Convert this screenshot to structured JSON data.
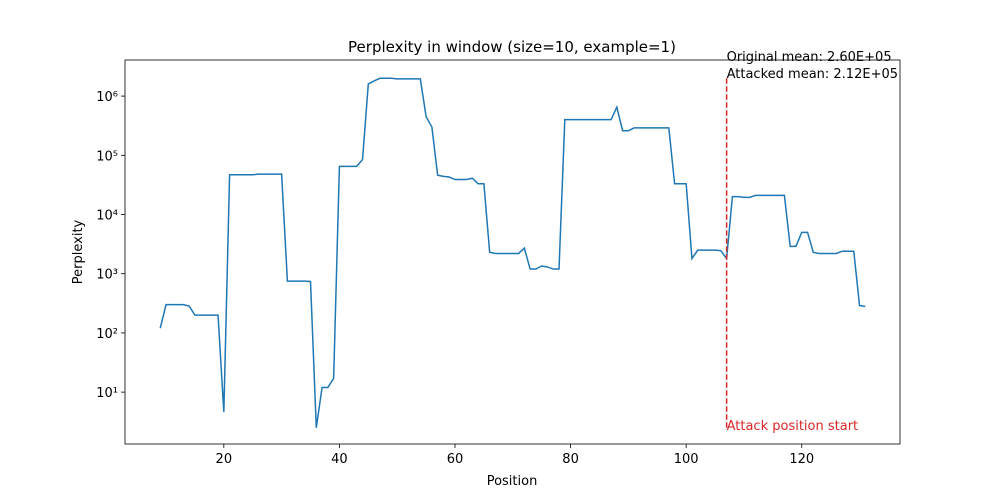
{
  "chart_data": {
    "type": "line",
    "title": "Perplexity in window (size=10, example=1)",
    "xlabel": "Position",
    "ylabel": "Perplexity",
    "x": [
      9,
      10,
      11,
      12,
      13,
      14,
      15,
      16,
      17,
      18,
      19,
      20,
      21,
      22,
      23,
      24,
      25,
      26,
      27,
      28,
      29,
      30,
      31,
      32,
      33,
      34,
      35,
      36,
      37,
      38,
      39,
      40,
      41,
      42,
      43,
      44,
      45,
      46,
      47,
      48,
      49,
      50,
      51,
      52,
      53,
      54,
      55,
      56,
      57,
      58,
      59,
      60,
      61,
      62,
      63,
      64,
      65,
      66,
      67,
      68,
      69,
      70,
      71,
      72,
      73,
      74,
      75,
      76,
      77,
      78,
      79,
      80,
      81,
      82,
      83,
      84,
      85,
      86,
      87,
      88,
      89,
      90,
      91,
      92,
      93,
      94,
      95,
      96,
      97,
      98,
      99,
      100,
      101,
      102,
      103,
      104,
      105,
      106,
      107,
      108,
      109,
      110,
      111,
      112,
      113,
      114,
      115,
      116,
      117,
      118,
      119,
      120,
      121,
      122,
      123,
      124,
      125,
      126,
      127,
      128,
      129,
      130,
      131
    ],
    "series": [
      {
        "name": "Perplexity",
        "color": "#1f77b4",
        "values": [
          120,
          300,
          300,
          300,
          300,
          285,
          200,
          200,
          200,
          200,
          200,
          4.6,
          47000,
          47000,
          47000,
          47000,
          47000,
          48000,
          48000,
          48000,
          48000,
          48000,
          750,
          750,
          750,
          750,
          740,
          2.5,
          12,
          12,
          17,
          65000,
          65000,
          65000,
          65000,
          85000,
          1600000,
          1800000,
          2000000,
          2000000,
          2000000,
          1950000,
          1950000,
          1950000,
          1950000,
          1950000,
          450000,
          300000,
          46000,
          44000,
          43000,
          39000,
          39000,
          39000,
          41000,
          33000,
          33000,
          2300,
          2200,
          2200,
          2200,
          2200,
          2200,
          2700,
          1200,
          1200,
          1350,
          1300,
          1200,
          1200,
          400000,
          400000,
          400000,
          400000,
          400000,
          400000,
          400000,
          400000,
          400000,
          650000,
          260000,
          260000,
          290000,
          290000,
          290000,
          290000,
          290000,
          290000,
          290000,
          33000,
          33000,
          33000,
          1800,
          2500,
          2500,
          2500,
          2500,
          2450,
          1800,
          20000,
          20000,
          19500,
          19500,
          21000,
          21000,
          21000,
          21000,
          21000,
          21000,
          2900,
          2900,
          5000,
          5000,
          2300,
          2200,
          2200,
          2200,
          2200,
          2400,
          2400,
          2400,
          290,
          280
        ]
      }
    ],
    "xlim": [
      2.9,
      137.0
    ],
    "xticks": [
      20,
      40,
      60,
      80,
      100,
      120
    ],
    "ylim": [
      1.33,
      4070000
    ],
    "log_y": true,
    "yticks": [
      {
        "value": 10,
        "label": "10¹"
      },
      {
        "value": 100,
        "label": "10²"
      },
      {
        "value": 1000,
        "label": "10³"
      },
      {
        "value": 10000,
        "label": "10⁴"
      },
      {
        "value": 100000,
        "label": "10⁵"
      },
      {
        "value": 1000000,
        "label": "10⁶"
      }
    ],
    "attack_position": 107,
    "attack_color": "#d62728",
    "annotations": [
      "Original mean: 2.60E+05",
      "Attacked mean: 2.12E+05",
      "Attack position start"
    ]
  }
}
